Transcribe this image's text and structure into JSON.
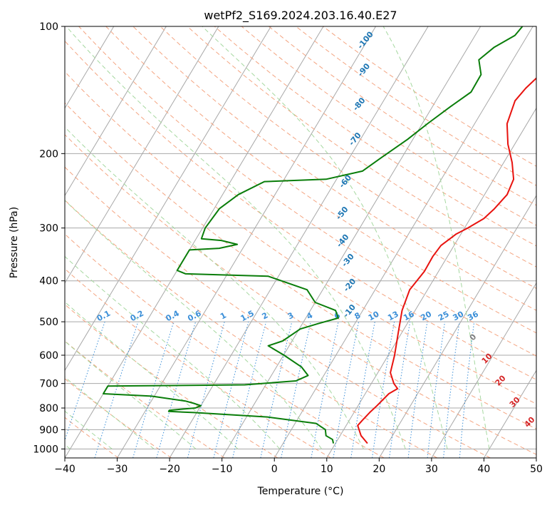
{
  "chart_data": {
    "type": "line",
    "title": "wetPf2_S169.2024.203.16.40.E27",
    "xlabel": "Temperature (°C)",
    "ylabel": "Pressure (hPa)",
    "xlim": [
      -40,
      50
    ],
    "ylim": [
      1050,
      100
    ],
    "y_scale": "log",
    "x_ticks": [
      "−40",
      "−30",
      "−20",
      "−10",
      "0",
      "10",
      "20",
      "30",
      "40",
      "50"
    ],
    "y_ticks": [
      {
        "p": 100,
        "label": "100"
      },
      {
        "p": 200,
        "label": "200"
      },
      {
        "p": 300,
        "label": "300"
      },
      {
        "p": 400,
        "label": "400"
      },
      {
        "p": 500,
        "label": "500"
      },
      {
        "p": 600,
        "label": "600"
      },
      {
        "p": 700,
        "label": "700"
      },
      {
        "p": 800,
        "label": "800"
      },
      {
        "p": 900,
        "label": "900"
      },
      {
        "p": 1000,
        "label": "1000"
      }
    ],
    "grid": true,
    "series": [
      {
        "kind": "temperature",
        "color": "#e8130f",
        "points": [
          [
            16.1,
            970
          ],
          [
            14.0,
            930
          ],
          [
            12.2,
            880
          ],
          [
            12.5,
            855
          ],
          [
            13.0,
            820
          ],
          [
            13.6,
            790
          ],
          [
            14.5,
            740
          ],
          [
            15.6,
            720
          ],
          [
            14.3,
            700
          ],
          [
            12.4,
            660
          ],
          [
            11.2,
            600
          ],
          [
            9.3,
            530
          ],
          [
            7.5,
            470
          ],
          [
            6.6,
            420
          ],
          [
            7.3,
            380
          ],
          [
            7.2,
            350
          ],
          [
            7.5,
            330
          ],
          [
            9.1,
            310
          ],
          [
            10.6,
            300
          ],
          [
            12.6,
            285
          ],
          [
            13.5,
            270
          ],
          [
            14.3,
            250
          ],
          [
            13.8,
            230
          ],
          [
            11.6,
            210
          ],
          [
            8.7,
            190
          ],
          [
            6.2,
            170
          ],
          [
            5.1,
            150
          ],
          [
            5.7,
            140
          ],
          [
            6.9,
            130
          ],
          [
            8.8,
            120
          ],
          [
            9.9,
            112
          ],
          [
            10.5,
            105
          ],
          [
            10.5,
            100
          ]
        ]
      },
      {
        "kind": "dewpoint",
        "color": "#0a7d0a",
        "points": [
          [
            9.6,
            970
          ],
          [
            9.0,
            950
          ],
          [
            7.3,
            930
          ],
          [
            6.5,
            900
          ],
          [
            4.0,
            870
          ],
          [
            -6.0,
            840
          ],
          [
            -20.5,
            820
          ],
          [
            -25.5,
            815
          ],
          [
            -25.5,
            810
          ],
          [
            -20.8,
            800
          ],
          [
            -20.0,
            790
          ],
          [
            -21.6,
            780
          ],
          [
            -23.5,
            770
          ],
          [
            -30.5,
            750
          ],
          [
            -40.0,
            740
          ],
          [
            -40.0,
            710
          ],
          [
            -14.0,
            705
          ],
          [
            -4.7,
            690
          ],
          [
            -3.0,
            670
          ],
          [
            -5.2,
            640
          ],
          [
            -9.9,
            600
          ],
          [
            -14.0,
            570
          ],
          [
            -11.8,
            555
          ],
          [
            -9.8,
            520
          ],
          [
            -7.0,
            505
          ],
          [
            -3.8,
            490
          ],
          [
            -5.2,
            470
          ],
          [
            -10.0,
            450
          ],
          [
            -13.0,
            420
          ],
          [
            -22.0,
            390
          ],
          [
            -38.0,
            385
          ],
          [
            -40.0,
            378
          ],
          [
            -40.0,
            338
          ],
          [
            -34.5,
            335
          ],
          [
            -31.5,
            328
          ],
          [
            -35.0,
            321
          ],
          [
            -39.0,
            318
          ],
          [
            -39.5,
            300
          ],
          [
            -39.0,
            270
          ],
          [
            -37.0,
            250
          ],
          [
            -33.5,
            233
          ],
          [
            -22.0,
            230
          ],
          [
            -16.0,
            220
          ],
          [
            -14.0,
            205
          ],
          [
            -11.0,
            185
          ],
          [
            -9.0,
            170
          ],
          [
            -6.6,
            155
          ],
          [
            -4.3,
            143
          ],
          [
            -4.4,
            130
          ],
          [
            -6.5,
            120
          ],
          [
            -5.0,
            112
          ],
          [
            -2.4,
            105
          ],
          [
            -2.0,
            100
          ]
        ]
      }
    ],
    "isotherms_every_c": 10,
    "dry_adiabats_k": [
      230,
      240,
      250,
      260,
      270,
      280,
      290,
      300,
      310,
      320,
      330,
      340,
      350,
      360,
      370,
      380,
      390,
      400,
      410,
      420,
      430,
      440,
      450
    ],
    "moist_adiabats_c": [
      -40,
      -32,
      -24,
      -16,
      -8,
      0,
      8,
      16,
      24,
      32,
      40
    ],
    "mixing_ratio_labels": [
      "0.1",
      "0.2",
      "0.4",
      "0.6",
      "1",
      "1.5",
      "2",
      "3",
      "4",
      "6",
      "8",
      "10",
      "13",
      "16",
      "20",
      "25",
      "30",
      "36"
    ],
    "dry_adiabat_labels": [
      {
        "text": "-100",
        "t": -30.3,
        "p": 108
      },
      {
        "text": "-90",
        "t": -27.2,
        "p": 127
      },
      {
        "text": "-80",
        "t": -24.2,
        "p": 153
      },
      {
        "text": "-70",
        "t": -21.0,
        "p": 185
      },
      {
        "text": "-60",
        "t": -18.0,
        "p": 233
      },
      {
        "text": "-50",
        "t": -15.0,
        "p": 277
      },
      {
        "text": "-40",
        "t": -11.7,
        "p": 322
      },
      {
        "text": "-30",
        "t": -8.5,
        "p": 358
      },
      {
        "text": "-20",
        "t": -5.3,
        "p": 410
      },
      {
        "text": "-10",
        "t": -2.4,
        "p": 472
      }
    ],
    "moist_adiabat_labels": [
      {
        "text": "0",
        "t": 24.2,
        "p": 545,
        "color": "#7f7f7f"
      },
      {
        "text": "10",
        "t": 29.3,
        "p": 612,
        "color": "#d62728"
      },
      {
        "text": "20",
        "t": 34.4,
        "p": 690,
        "color": "#d62728"
      },
      {
        "text": "30",
        "t": 39.6,
        "p": 776,
        "color": "#d62728"
      },
      {
        "text": "40",
        "t": 44.7,
        "p": 865,
        "color": "#d62728"
      }
    ]
  }
}
